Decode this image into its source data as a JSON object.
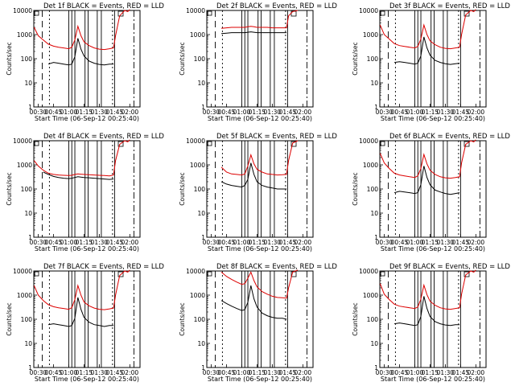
{
  "figure": {
    "xlabel": "Start Time (06-Sep-12 00:25:40)",
    "ylabel": "Counts/sec",
    "xticks": [
      "00:30",
      "00:45",
      "01:00",
      "01:15",
      "01:30",
      "01:45",
      "02:00"
    ],
    "yticks": [
      "1",
      "10",
      "100",
      "1000",
      "10000"
    ]
  },
  "colors": {
    "events": "#000000",
    "lld": "#dd0000",
    "axis": "#000000"
  },
  "chart_data": [
    {
      "type": "line",
      "title": "Det 1f BLACK = Events, RED = LLD",
      "xlim": [
        "00:25:40",
        "02:10"
      ],
      "ylim": [
        1,
        10000
      ],
      "yscale": "log",
      "x": [
        "00:26",
        "00:30",
        "00:35",
        "00:40",
        "00:45",
        "00:50",
        "00:55",
        "01:00",
        "01:03",
        "01:06",
        "01:09",
        "01:12",
        "01:15",
        "01:20",
        "01:25",
        "01:30",
        "01:35",
        "01:40",
        "01:44",
        "01:46",
        "01:50",
        "01:55",
        "01:58",
        "02:00",
        "02:02"
      ],
      "series": [
        {
          "name": "Events",
          "values": [
            null,
            null,
            null,
            60,
            70,
            65,
            60,
            55,
            60,
            120,
            700,
            250,
            130,
            80,
            65,
            58,
            55,
            60,
            60,
            null,
            null,
            null,
            null,
            null,
            null
          ]
        },
        {
          "name": "LLD",
          "values": [
            2000,
            900,
            600,
            400,
            330,
            300,
            280,
            260,
            300,
            600,
            2200,
            900,
            500,
            350,
            280,
            250,
            240,
            260,
            280,
            900,
            6000,
            10000,
            9000,
            11000,
            null
          ]
        }
      ]
    },
    {
      "type": "line",
      "title": "Det 2f BLACK = Events, RED = LLD",
      "xlim": [
        "00:25:40",
        "02:10"
      ],
      "ylim": [
        1,
        10000
      ],
      "yscale": "log",
      "x": [
        "00:26",
        "00:30",
        "00:35",
        "00:40",
        "00:45",
        "00:50",
        "00:55",
        "01:00",
        "01:03",
        "01:06",
        "01:09",
        "01:12",
        "01:15",
        "01:20",
        "01:25",
        "01:30",
        "01:35",
        "01:40",
        "01:44",
        "01:46",
        "01:50",
        "01:55",
        "01:58",
        "02:00",
        "02:02"
      ],
      "series": [
        {
          "name": "Events",
          "values": [
            null,
            null,
            null,
            1100,
            1150,
            1200,
            1200,
            1200,
            1200,
            1250,
            1300,
            1250,
            1200,
            1200,
            1200,
            1200,
            1200,
            1200,
            1200,
            null,
            null,
            null,
            null,
            null,
            null
          ]
        },
        {
          "name": "LLD",
          "values": [
            null,
            null,
            null,
            1800,
            1900,
            2000,
            2000,
            2000,
            2000,
            2100,
            2200,
            2100,
            2000,
            2000,
            2000,
            1900,
            1900,
            1900,
            1900,
            6000,
            9000,
            10000,
            null,
            null,
            null
          ]
        }
      ]
    },
    {
      "type": "line",
      "title": "Det 3f BLACK = Events, RED = LLD",
      "xlim": [
        "00:25:40",
        "02:10"
      ],
      "ylim": [
        1,
        10000
      ],
      "yscale": "log",
      "x": [
        "00:26",
        "00:30",
        "00:35",
        "00:40",
        "00:45",
        "00:50",
        "00:55",
        "01:00",
        "01:03",
        "01:06",
        "01:09",
        "01:12",
        "01:15",
        "01:20",
        "01:25",
        "01:30",
        "01:35",
        "01:40",
        "01:44",
        "01:46",
        "01:50",
        "01:55",
        "01:58",
        "02:00",
        "02:02"
      ],
      "series": [
        {
          "name": "Events",
          "values": [
            null,
            null,
            null,
            70,
            75,
            70,
            65,
            60,
            65,
            130,
            800,
            280,
            140,
            85,
            70,
            62,
            58,
            62,
            65,
            null,
            null,
            null,
            null,
            null,
            null
          ]
        },
        {
          "name": "LLD",
          "values": [
            2500,
            1000,
            650,
            420,
            350,
            320,
            300,
            280,
            320,
            650,
            2500,
            1000,
            550,
            380,
            300,
            270,
            260,
            280,
            300,
            1000,
            6500,
            10000,
            9000,
            11000,
            null
          ]
        }
      ]
    },
    {
      "type": "line",
      "title": "Det 4f BLACK = Events, RED = LLD",
      "xlim": [
        "00:25:40",
        "02:10"
      ],
      "ylim": [
        1,
        10000
      ],
      "yscale": "log",
      "x": [
        "00:26",
        "00:30",
        "00:35",
        "00:40",
        "00:45",
        "00:50",
        "00:55",
        "01:00",
        "01:03",
        "01:06",
        "01:09",
        "01:12",
        "01:15",
        "01:20",
        "01:25",
        "01:30",
        "01:35",
        "01:40",
        "01:44",
        "01:46",
        "01:50",
        "01:55",
        "01:58",
        "02:00",
        "02:02"
      ],
      "series": [
        {
          "name": "Events",
          "values": [
            null,
            null,
            500,
            400,
            330,
            300,
            280,
            270,
            280,
            300,
            320,
            310,
            300,
            290,
            280,
            270,
            260,
            250,
            260,
            null,
            null,
            null,
            null,
            null,
            null
          ]
        },
        {
          "name": "LLD",
          "values": [
            1500,
            900,
            600,
            450,
            400,
            380,
            370,
            360,
            370,
            400,
            420,
            410,
            400,
            390,
            380,
            370,
            360,
            350,
            380,
            1500,
            7000,
            10000,
            9000,
            11000,
            null
          ]
        }
      ]
    },
    {
      "type": "line",
      "title": "Det 5f BLACK = Events, RED = LLD",
      "xlim": [
        "00:25:40",
        "02:10"
      ],
      "ylim": [
        1,
        10000
      ],
      "yscale": "log",
      "x": [
        "00:26",
        "00:30",
        "00:35",
        "00:40",
        "00:45",
        "00:50",
        "00:55",
        "01:00",
        "01:03",
        "01:06",
        "01:09",
        "01:12",
        "01:15",
        "01:20",
        "01:25",
        "01:30",
        "01:35",
        "01:40",
        "01:44",
        "01:46",
        "01:50",
        "01:55",
        "01:58",
        "02:00",
        "02:02"
      ],
      "series": [
        {
          "name": "Events",
          "values": [
            null,
            null,
            null,
            200,
            160,
            140,
            130,
            120,
            140,
            250,
            1200,
            400,
            200,
            140,
            120,
            110,
            100,
            100,
            100,
            null,
            null,
            null,
            null,
            null,
            null
          ]
        },
        {
          "name": "LLD",
          "values": [
            null,
            null,
            null,
            800,
            500,
            420,
            400,
            380,
            420,
            900,
            2600,
            1100,
            650,
            500,
            420,
            400,
            380,
            390,
            400,
            1500,
            8000,
            10000,
            null,
            null,
            null
          ]
        }
      ]
    },
    {
      "type": "line",
      "title": "Det 6f BLACK = Events, RED = LLD",
      "xlim": [
        "00:25:40",
        "02:10"
      ],
      "ylim": [
        1,
        10000
      ],
      "yscale": "log",
      "x": [
        "00:26",
        "00:30",
        "00:35",
        "00:40",
        "00:45",
        "00:50",
        "00:55",
        "01:00",
        "01:03",
        "01:06",
        "01:09",
        "01:12",
        "01:15",
        "01:20",
        "01:25",
        "01:30",
        "01:35",
        "01:40",
        "01:44",
        "01:46",
        "01:50",
        "01:55",
        "01:58",
        "02:00",
        "02:02"
      ],
      "series": [
        {
          "name": "Events",
          "values": [
            null,
            null,
            null,
            70,
            80,
            75,
            70,
            65,
            70,
            150,
            900,
            300,
            150,
            90,
            75,
            65,
            60,
            65,
            70,
            null,
            null,
            null,
            null,
            null,
            null
          ]
        },
        {
          "name": "LLD",
          "values": [
            3000,
            1200,
            700,
            450,
            380,
            350,
            320,
            300,
            350,
            700,
            2700,
            1100,
            600,
            400,
            320,
            290,
            280,
            300,
            320,
            1200,
            7000,
            10000,
            9000,
            11000,
            null
          ]
        }
      ]
    },
    {
      "type": "line",
      "title": "Det 7f BLACK = Events, RED = LLD",
      "xlim": [
        "00:25:40",
        "02:10"
      ],
      "ylim": [
        1,
        10000
      ],
      "yscale": "log",
      "x": [
        "00:26",
        "00:30",
        "00:35",
        "00:40",
        "00:45",
        "00:50",
        "00:55",
        "01:00",
        "01:03",
        "01:06",
        "01:09",
        "01:12",
        "01:15",
        "01:20",
        "01:25",
        "01:30",
        "01:35",
        "01:40",
        "01:44",
        "01:46",
        "01:50",
        "01:55",
        "01:58",
        "02:00",
        "02:02"
      ],
      "series": [
        {
          "name": "Events",
          "values": [
            null,
            null,
            null,
            60,
            65,
            60,
            55,
            50,
            55,
            110,
            800,
            260,
            120,
            75,
            60,
            55,
            50,
            55,
            55,
            null,
            null,
            null,
            null,
            null,
            null
          ]
        },
        {
          "name": "LLD",
          "values": [
            2500,
            1000,
            600,
            400,
            330,
            300,
            280,
            260,
            300,
            650,
            2500,
            1000,
            520,
            360,
            290,
            260,
            250,
            270,
            290,
            1000,
            6500,
            10000,
            9000,
            11000,
            null
          ]
        }
      ]
    },
    {
      "type": "line",
      "title": "Det 8f BLACK = Events, RED = LLD",
      "xlim": [
        "00:25:40",
        "02:10"
      ],
      "ylim": [
        1,
        10000
      ],
      "yscale": "log",
      "x": [
        "00:26",
        "00:30",
        "00:35",
        "00:40",
        "00:45",
        "00:50",
        "00:55",
        "01:00",
        "01:03",
        "01:06",
        "01:09",
        "01:12",
        "01:15",
        "01:20",
        "01:25",
        "01:30",
        "01:35",
        "01:40",
        "01:44",
        "01:46",
        "01:50",
        "01:55",
        "01:58",
        "02:00",
        "02:02"
      ],
      "series": [
        {
          "name": "Events",
          "values": [
            null,
            null,
            null,
            600,
            450,
            350,
            280,
            230,
            250,
            500,
            2500,
            700,
            320,
            180,
            140,
            120,
            110,
            110,
            100,
            null,
            null,
            null,
            null,
            null,
            null
          ]
        },
        {
          "name": "LLD",
          "values": [
            null,
            null,
            null,
            9000,
            6000,
            4500,
            3500,
            2800,
            3000,
            5000,
            9000,
            4000,
            2200,
            1400,
            1100,
            900,
            800,
            780,
            750,
            2000,
            9000,
            11000,
            null,
            null,
            null
          ]
        }
      ]
    },
    {
      "type": "line",
      "title": "Det 9f BLACK = Events, RED = LLD",
      "xlim": [
        "00:25:40",
        "02:10"
      ],
      "ylim": [
        1,
        10000
      ],
      "yscale": "log",
      "x": [
        "00:26",
        "00:30",
        "00:35",
        "00:40",
        "00:45",
        "00:50",
        "00:55",
        "01:00",
        "01:03",
        "01:06",
        "01:09",
        "01:12",
        "01:15",
        "01:20",
        "01:25",
        "01:30",
        "01:35",
        "01:40",
        "01:44",
        "01:46",
        "01:50",
        "01:55",
        "01:58",
        "02:00",
        "02:02"
      ],
      "series": [
        {
          "name": "Events",
          "values": [
            null,
            null,
            null,
            65,
            70,
            65,
            60,
            55,
            60,
            130,
            900,
            280,
            130,
            80,
            65,
            58,
            55,
            60,
            60,
            null,
            null,
            null,
            null,
            null,
            null
          ]
        },
        {
          "name": "LLD",
          "values": [
            3000,
            1100,
            650,
            420,
            350,
            320,
            300,
            280,
            320,
            680,
            2600,
            1050,
            560,
            380,
            300,
            270,
            260,
            280,
            300,
            1100,
            6800,
            10000,
            9000,
            11000,
            null
          ]
        }
      ]
    }
  ]
}
